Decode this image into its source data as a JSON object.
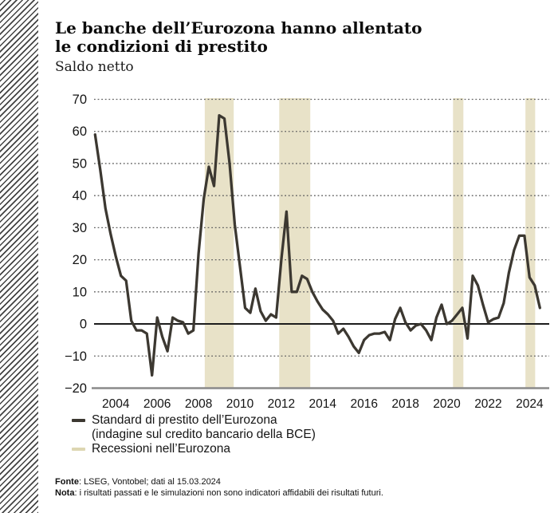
{
  "header": {
    "title_line1": "Le banche dell’Eurozona hanno allentato",
    "title_line2": "le condizioni di prestito",
    "subtitle": "Saldo netto"
  },
  "legend": {
    "series_label_line1": "Standard di prestito dell’Eurozona",
    "series_label_line2": "(indagine sul credito bancario della BCE)",
    "recession_label": "Recessioni nell’Eurozona"
  },
  "footer": {
    "source_label": "Fonte",
    "source_text": ": LSEG, Vontobel; dati al 15.03.2024",
    "note_label": "Nota",
    "note_text": ": i risultati passati e le simulazioni non sono indicatori affidabili dei risultati futuri."
  },
  "chart_data": {
    "type": "line",
    "title": "Le banche dell'Eurozona hanno allentato le condizioni di prestito",
    "subtitle_ylabel": "Saldo netto",
    "xlim": [
      2002.95,
      2024.95
    ],
    "ylim": [
      -20,
      70
    ],
    "y_ticks": [
      70,
      60,
      50,
      40,
      30,
      20,
      10,
      0,
      -10,
      -20
    ],
    "x_ticks": [
      2004,
      2006,
      2008,
      2010,
      2012,
      2014,
      2016,
      2018,
      2020,
      2022,
      2024
    ],
    "grid": "dotted-horizontal",
    "zero_line": true,
    "legend_position": "bottom-left",
    "colors": {
      "series_line": "#3c3831",
      "recession_band": "#e8e2c8",
      "legend_recession_marker": "#ddd6b2",
      "gridline": "#5f5f5f",
      "zero_line": "#1c1c1c",
      "baseline": "#8a8a8a",
      "tick_text": "#141414"
    },
    "recession_bands": {
      "label": "Recessioni nell'Eurozona",
      "ranges": [
        [
          2008.3,
          2009.7
        ],
        [
          2011.9,
          2013.4
        ],
        [
          2020.3,
          2020.8
        ],
        [
          2023.8,
          2024.27
        ]
      ]
    },
    "series": [
      {
        "name": "Standard di prestito dell'Eurozona (indagine sul credito bancario della BCE)",
        "points": [
          [
            2003.0,
            59
          ],
          [
            2003.25,
            48
          ],
          [
            2003.5,
            36
          ],
          [
            2003.75,
            28
          ],
          [
            2004.0,
            21
          ],
          [
            2004.25,
            15
          ],
          [
            2004.5,
            13.5
          ],
          [
            2004.75,
            1
          ],
          [
            2005.0,
            -2
          ],
          [
            2005.25,
            -2
          ],
          [
            2005.5,
            -3
          ],
          [
            2005.75,
            -16
          ],
          [
            2006.0,
            2
          ],
          [
            2006.25,
            -4
          ],
          [
            2006.5,
            -8.5
          ],
          [
            2006.75,
            2
          ],
          [
            2007.0,
            1
          ],
          [
            2007.25,
            0.5
          ],
          [
            2007.5,
            -3
          ],
          [
            2007.75,
            -2
          ],
          [
            2008.0,
            22
          ],
          [
            2008.25,
            39
          ],
          [
            2008.5,
            49
          ],
          [
            2008.75,
            43
          ],
          [
            2009.0,
            65
          ],
          [
            2009.25,
            64
          ],
          [
            2009.5,
            50
          ],
          [
            2009.75,
            31
          ],
          [
            2010.0,
            18
          ],
          [
            2010.25,
            5
          ],
          [
            2010.5,
            3.5
          ],
          [
            2010.75,
            11
          ],
          [
            2011.0,
            4
          ],
          [
            2011.25,
            1
          ],
          [
            2011.5,
            3
          ],
          [
            2011.75,
            2
          ],
          [
            2012.0,
            20
          ],
          [
            2012.25,
            35
          ],
          [
            2012.5,
            10
          ],
          [
            2012.75,
            10
          ],
          [
            2013.0,
            15
          ],
          [
            2013.25,
            14
          ],
          [
            2013.5,
            10
          ],
          [
            2013.75,
            7
          ],
          [
            2014.0,
            4.5
          ],
          [
            2014.25,
            3
          ],
          [
            2014.5,
            1
          ],
          [
            2014.75,
            -3
          ],
          [
            2015.0,
            -1.5
          ],
          [
            2015.25,
            -4
          ],
          [
            2015.5,
            -7
          ],
          [
            2015.75,
            -9
          ],
          [
            2016.0,
            -5
          ],
          [
            2016.25,
            -3.5
          ],
          [
            2016.5,
            -3
          ],
          [
            2016.75,
            -3
          ],
          [
            2017.0,
            -2.5
          ],
          [
            2017.25,
            -5
          ],
          [
            2017.5,
            1.5
          ],
          [
            2017.75,
            5
          ],
          [
            2018.0,
            0.5
          ],
          [
            2018.25,
            -2
          ],
          [
            2018.5,
            -0.5
          ],
          [
            2018.75,
            0
          ],
          [
            2019.0,
            -2
          ],
          [
            2019.25,
            -5
          ],
          [
            2019.5,
            2
          ],
          [
            2019.75,
            6
          ],
          [
            2020.0,
            0
          ],
          [
            2020.25,
            1
          ],
          [
            2020.5,
            3
          ],
          [
            2020.75,
            5
          ],
          [
            2021.0,
            -4.5
          ],
          [
            2021.25,
            15
          ],
          [
            2021.5,
            12
          ],
          [
            2021.75,
            6
          ],
          [
            2022.0,
            0.5
          ],
          [
            2022.25,
            1.5
          ],
          [
            2022.5,
            2
          ],
          [
            2022.75,
            6.5
          ],
          [
            2023.0,
            16
          ],
          [
            2023.25,
            23
          ],
          [
            2023.5,
            27.5
          ],
          [
            2023.75,
            27.5
          ],
          [
            2024.0,
            14.5
          ],
          [
            2024.25,
            12
          ],
          [
            2024.5,
            5
          ]
        ]
      }
    ]
  }
}
